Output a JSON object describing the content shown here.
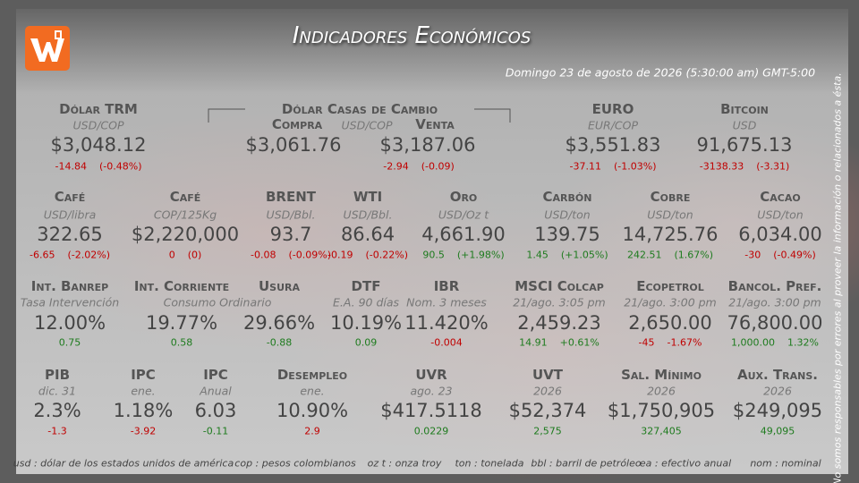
{
  "header": {
    "title": "Indicadores Económicos",
    "date": "Domingo 23 de agosto de 2026 (5:30:00 am) GMT-5:00"
  },
  "casas": {
    "title": "Dólar Casas de Cambio",
    "buy_label": "Compra",
    "unit": "USD/COP",
    "sell_label": "Venta",
    "buy": "$3,061.76",
    "sell": "$3,187.06",
    "change": "-2.94",
    "pct": "(-0.09)",
    "color": "#c00000"
  },
  "rows": [
    [
      {
        "name": "Dólar TRM",
        "unit": "USD/COP",
        "value": "$3,048.12",
        "change": "-14.84",
        "pct": "(-0.48%)",
        "color": "#c00000"
      },
      {
        "name": "EURO",
        "unit": "EUR/COP",
        "value": "$3,551.83",
        "change": "-37.11",
        "pct": "(-1.03%)",
        "color": "#c00000"
      },
      {
        "name": "Bitcoin",
        "unit": "USD",
        "value": "91,675.13",
        "change": "-3138.33",
        "pct": "(-3.31)",
        "color": "#c00000"
      }
    ],
    [
      {
        "name": "Café",
        "unit": "USD/libra",
        "value": "322.65",
        "change": "-6.65",
        "pct": "(-2.02%)",
        "color": "#c00000"
      },
      {
        "name": "Café",
        "unit": "COP/125Kg",
        "value": "$2,220,000",
        "change": "0",
        "pct": "(0)",
        "color": "#c00000"
      },
      {
        "name": "BRENT",
        "unit": "USD/Bbl.",
        "value": "93.7",
        "change": "-0.08",
        "pct": "(-0.09%)",
        "color": "#c00000"
      },
      {
        "name": "WTI",
        "unit": "USD/Bbl.",
        "value": "86.64",
        "change": "-0.19",
        "pct": "(-0.22%)",
        "color": "#c00000"
      },
      {
        "name": "Oro",
        "unit": "USD/Oz t",
        "value": "4,661.90",
        "change": "90.5",
        "pct": "(+1.98%)",
        "color": "#1e7b1e"
      },
      {
        "name": "Carbón",
        "unit": "USD/ton",
        "value": "139.75",
        "change": "1.45",
        "pct": "(+1.05%)",
        "color": "#1e7b1e"
      },
      {
        "name": "Cobre",
        "unit": "USD/ton",
        "value": "14,725.76",
        "change": "242.51",
        "pct": "(1.67%)",
        "color": "#1e7b1e"
      },
      {
        "name": "Cacao",
        "unit": "USD/ton",
        "value": "6,034.00",
        "change": "-30",
        "pct": "(-0.49%)",
        "color": "#c00000"
      }
    ],
    [
      {
        "name": "Int. Banrep",
        "unit": "Tasa Intervención",
        "value": "12.00%",
        "change": "0.75",
        "color": "#1e7b1e"
      },
      {
        "name": "Int. Corriente",
        "unit": "Consumo Ordinario",
        "value": "19.77%",
        "change": "0.58",
        "color": "#1e7b1e"
      },
      {
        "name": "Usura",
        "value": "29.66%",
        "change": "-0.88",
        "color": "#1e7b1e"
      },
      {
        "name": "DTF",
        "unit": "E.A. 90 días",
        "value": "10.19%",
        "change": "0.09",
        "color": "#1e7b1e"
      },
      {
        "name": "IBR",
        "unit": "Nom. 3 meses",
        "value": "11.420%",
        "change": "-0.004",
        "color": "#c00000"
      },
      {
        "name": "MSCI Colcap",
        "unit": "21/ago. 3:05 pm",
        "value": "2,459.23",
        "change": "14.91",
        "pct": "+0.61%",
        "color": "#1e7b1e"
      },
      {
        "name": "Ecopetrol",
        "unit": "21/ago. 3:00 pm",
        "value": "2,650.00",
        "change": "-45",
        "pct": "-1.67%",
        "color": "#c00000"
      },
      {
        "name": "Bancol. Pref.",
        "unit": "21/ago. 3:00 pm",
        "value": "76,800.00",
        "change": "1,000.00",
        "pct": "1.32%",
        "color": "#1e7b1e"
      }
    ],
    [
      {
        "name": "PIB",
        "unit": "dic. 31",
        "value": "2.3%",
        "change": "-1.3",
        "color": "#c00000"
      },
      {
        "name": "IPC",
        "unit": "ene.",
        "value": "1.18%",
        "change": "-3.92",
        "color": "#c00000"
      },
      {
        "name": "IPC",
        "unit": "Anual",
        "value": "6.03",
        "change": "-0.11",
        "color": "#1e7b1e"
      },
      {
        "name": "Desempleo",
        "unit": "ene.",
        "value": "10.90%",
        "change": "2.9",
        "color": "#c00000"
      },
      {
        "name": "UVR",
        "unit": "ago. 23",
        "value": "$417.5118",
        "change": "0.0229",
        "color": "#1e7b1e"
      },
      {
        "name": "UVT",
        "unit": "2026",
        "value": "$52,374",
        "change": "2,575",
        "color": "#1e7b1e"
      },
      {
        "name": "Sal. Mínimo",
        "unit": "2026",
        "value": "$1,750,905",
        "change": "327,405",
        "color": "#1e7b1e"
      },
      {
        "name": "Aux. Trans.",
        "unit": "2026",
        "value": "$249,095",
        "change": "49,095",
        "color": "#1e7b1e"
      }
    ]
  ],
  "footer": [
    "usd : dólar de los estados unidos de américa",
    "cop : pesos colombianos",
    "oz t : onza troy",
    "ton : tonelada",
    "bbl : barril de petróleo",
    "ea : efectivo anual",
    "nom : nominal"
  ],
  "disclaimer": "No somos responsables por errores al proveer la información o relacionados a ésta."
}
